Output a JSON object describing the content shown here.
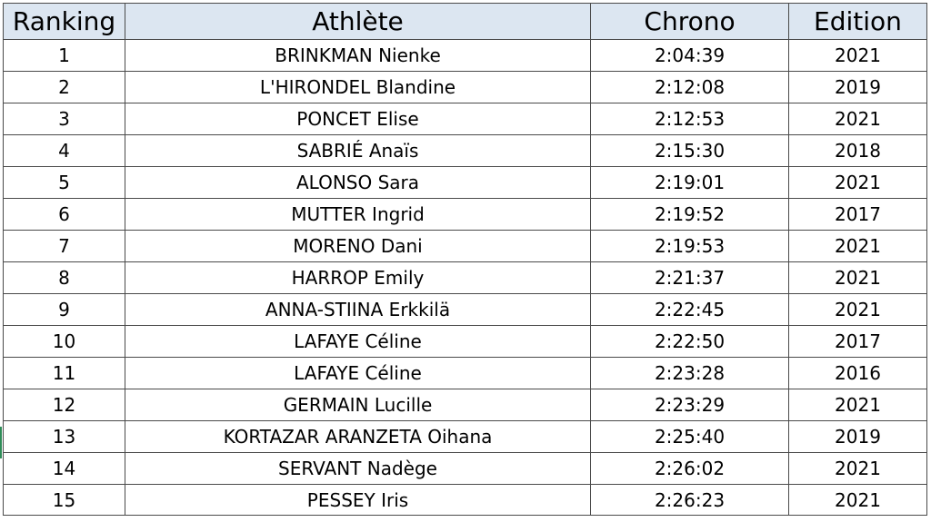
{
  "table": {
    "headers": {
      "ranking": "Ranking",
      "athlete": "Athlète",
      "chrono": "Chrono",
      "edition": "Edition"
    },
    "rows": [
      {
        "ranking": "1",
        "athlete": "BRINKMAN Nienke",
        "chrono": "2:04:39",
        "edition": "2021"
      },
      {
        "ranking": "2",
        "athlete": "L'HIRONDEL Blandine",
        "chrono": "2:12:08",
        "edition": "2019"
      },
      {
        "ranking": "3",
        "athlete": "PONCET Elise",
        "chrono": "2:12:53",
        "edition": "2021"
      },
      {
        "ranking": "4",
        "athlete": "SABRIÉ Anaïs",
        "chrono": "2:15:30",
        "edition": "2018"
      },
      {
        "ranking": "5",
        "athlete": "ALONSO Sara",
        "chrono": "2:19:01",
        "edition": "2021"
      },
      {
        "ranking": "6",
        "athlete": "MUTTER Ingrid",
        "chrono": "2:19:52",
        "edition": "2017"
      },
      {
        "ranking": "7",
        "athlete": "MORENO Dani",
        "chrono": "2:19:53",
        "edition": "2021"
      },
      {
        "ranking": "8",
        "athlete": "HARROP Emily",
        "chrono": "2:21:37",
        "edition": "2021"
      },
      {
        "ranking": "9",
        "athlete": "ANNA-STIINA Erkkilä",
        "chrono": "2:22:45",
        "edition": "2021"
      },
      {
        "ranking": "10",
        "athlete": "LAFAYE Céline",
        "chrono": "2:22:50",
        "edition": "2017"
      },
      {
        "ranking": "11",
        "athlete": "LAFAYE Céline",
        "chrono": "2:23:28",
        "edition": "2016"
      },
      {
        "ranking": "12",
        "athlete": "GERMAIN Lucille",
        "chrono": "2:23:29",
        "edition": "2021"
      },
      {
        "ranking": "13",
        "athlete": "KORTAZAR ARANZETA Oihana",
        "chrono": "2:25:40",
        "edition": "2019"
      },
      {
        "ranking": "14",
        "athlete": "SERVANT Nadège",
        "chrono": "2:26:02",
        "edition": "2021"
      },
      {
        "ranking": "15",
        "athlete": "PESSEY Iris",
        "chrono": "2:26:23",
        "edition": "2021"
      }
    ]
  },
  "colors": {
    "header_background": "#dce6f1",
    "grid_line": "#4a4a4a",
    "text": "#000000"
  }
}
